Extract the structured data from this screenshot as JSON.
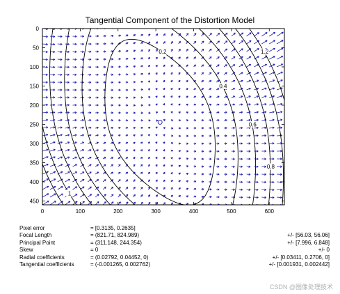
{
  "chart_data": {
    "type": "vector_field_contour",
    "title": "Tangential Component of the Distortion Model",
    "xlim": [
      0,
      640
    ],
    "ylim": [
      0,
      460
    ],
    "y_axis_inverted": true,
    "x_ticks": [
      0,
      100,
      200,
      300,
      400,
      500,
      600
    ],
    "y_ticks": [
      0,
      50,
      100,
      150,
      200,
      250,
      300,
      350,
      400,
      450
    ],
    "principal_point": [
      311.148,
      244.354
    ],
    "center_marker": "o",
    "arrow_color": "#1a1ab4",
    "contour_color": "#000000",
    "contour_levels": [
      "0.2",
      "0.4",
      "0.6",
      "0.8",
      "1",
      "1.2"
    ],
    "tangential_coefficients": [
      -0.001265,
      0.002762
    ],
    "focal_length": [
      821.71,
      824.989
    ]
  },
  "params": [
    {
      "label": "Pixel error",
      "value": "= [0.3135, 0.2635]",
      "err": ""
    },
    {
      "label": "Focal Length",
      "value": "= (821.71, 824.989)",
      "err": "+/- [56.03, 56.06]"
    },
    {
      "label": "Principal Point",
      "value": "= (311.148, 244.354)",
      "err": "+/- [7.996, 6.848]"
    },
    {
      "label": "Skew",
      "value": "= 0",
      "err": "+/- 0"
    },
    {
      "label": "Radial coefficients",
      "value": "= (0.02792, 0.04452, 0)",
      "err": "+/- [0.03411, 0.2706, 0]"
    },
    {
      "label": "Tangential coefficients",
      "value": "= (-0.001265, 0.002762)",
      "err": "+/- [0.001931, 0.002442]"
    }
  ],
  "watermark": "CSDN @图像处理技术"
}
